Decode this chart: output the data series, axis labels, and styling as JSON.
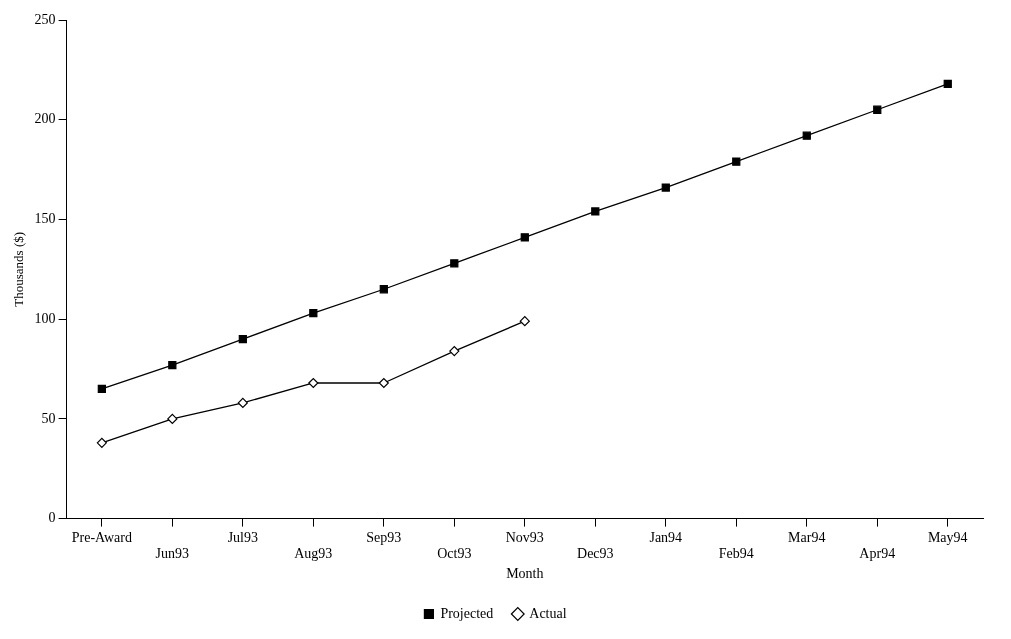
{
  "chart_data": {
    "type": "line",
    "xlabel": "Month",
    "ylabel": "Thousands ($)",
    "categories": [
      "Pre-Award",
      "Jun93",
      "Jul93",
      "Aug93",
      "Sep93",
      "Oct93",
      "Nov93",
      "Dec93",
      "Jan94",
      "Feb94",
      "Mar94",
      "Apr94",
      "May94"
    ],
    "series": [
      {
        "name": "Projected",
        "color": "#000000",
        "marker": "square",
        "values": [
          65,
          77,
          90,
          103,
          115,
          128,
          141,
          154,
          166,
          179,
          192,
          205,
          218
        ]
      },
      {
        "name": "Actual",
        "color": "#000000",
        "marker": "diamond",
        "values": [
          38,
          50,
          58,
          68,
          68,
          84,
          99,
          null,
          null,
          null,
          null,
          null,
          null
        ]
      }
    ],
    "ylim": [
      0,
      250
    ],
    "yticks": [
      0,
      50,
      100,
      150,
      200,
      250
    ],
    "grid": false,
    "legend": "bottom",
    "line_style": "solid"
  }
}
